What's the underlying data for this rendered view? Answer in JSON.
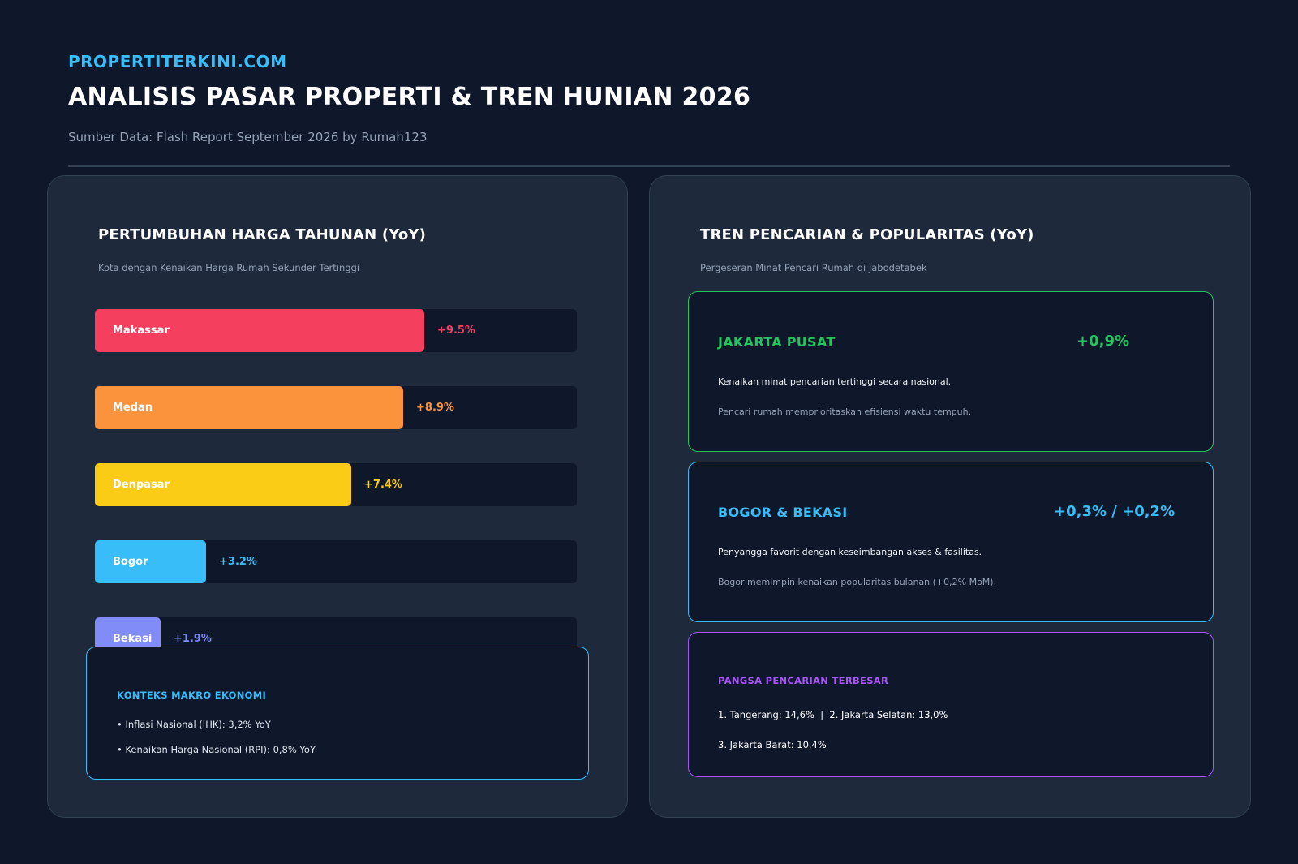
{
  "header": {
    "brand": "PROPERTITERKINI.COM",
    "title": "ANALISIS PASAR PROPERTI & TREN HUNIAN 2026",
    "source": "Sumber Data: Flash Report September 2026 by Rumah123"
  },
  "left_panel": {
    "title": "PERTUMBUHAN HARGA TAHUNAN (YoY)",
    "subtitle": "Kota dengan Kenaikan Harga Rumah Sekunder Tertinggi",
    "macro": {
      "title": "KONTEKS MAKRO EKONOMI",
      "items": [
        "• Inflasi Nasional (IHK): 3,2% YoY",
        "• Kenaikan Harga Nasional (RPI): 0,8% YoY"
      ]
    }
  },
  "chart_data": {
    "type": "bar",
    "orientation": "horizontal",
    "title": "PERTUMBUHAN HARGA TAHUNAN (YoY)",
    "subtitle": "Kota dengan Kenaikan Harga Rumah Sekunder Tertinggi",
    "categories": [
      "Makassar",
      "Medan",
      "Denpasar",
      "Bogor",
      "Bekasi"
    ],
    "values": [
      9.5,
      8.9,
      7.4,
      3.2,
      1.9
    ],
    "value_labels": [
      "+9.5%",
      "+8.9%",
      "+7.4%",
      "+3.2%",
      "+1.9%"
    ],
    "colors": [
      "#f43f5e",
      "#fb923c",
      "#facc15",
      "#38bdf8",
      "#818cf8"
    ],
    "xlim": [
      0,
      13.9
    ],
    "grid": false,
    "legend": "none"
  },
  "right_panel": {
    "title": "TREN PENCARIAN & POPULARITAS (YoY)",
    "subtitle": "Pergeseran Minat Pencari Rumah di Jabodetabek",
    "cards": [
      {
        "title": "JAKARTA PUSAT",
        "value": "+0,9%",
        "line1": "Kenaikan minat pencarian tertinggi secara nasional.",
        "line2": "Pencari rumah memprioritaskan efisiensi waktu tempuh.",
        "color": "#22c55e"
      },
      {
        "title": "BOGOR & BEKASI",
        "value": "+0,3% / +0,2%",
        "line1": "Penyangga favorit dengan keseimbangan akses & fasilitas.",
        "line2": "Bogor memimpin kenaikan popularitas bulanan (+0,2% MoM).",
        "color": "#38bdf8"
      }
    ],
    "share": {
      "title": "PANGSA PENCARIAN TERBESAR",
      "line1": "1. Tangerang: 14,6%  |  2. Jakarta Selatan: 13,0%",
      "line2": "3. Jakarta Barat: 10,4%",
      "color": "#a855f7"
    }
  }
}
